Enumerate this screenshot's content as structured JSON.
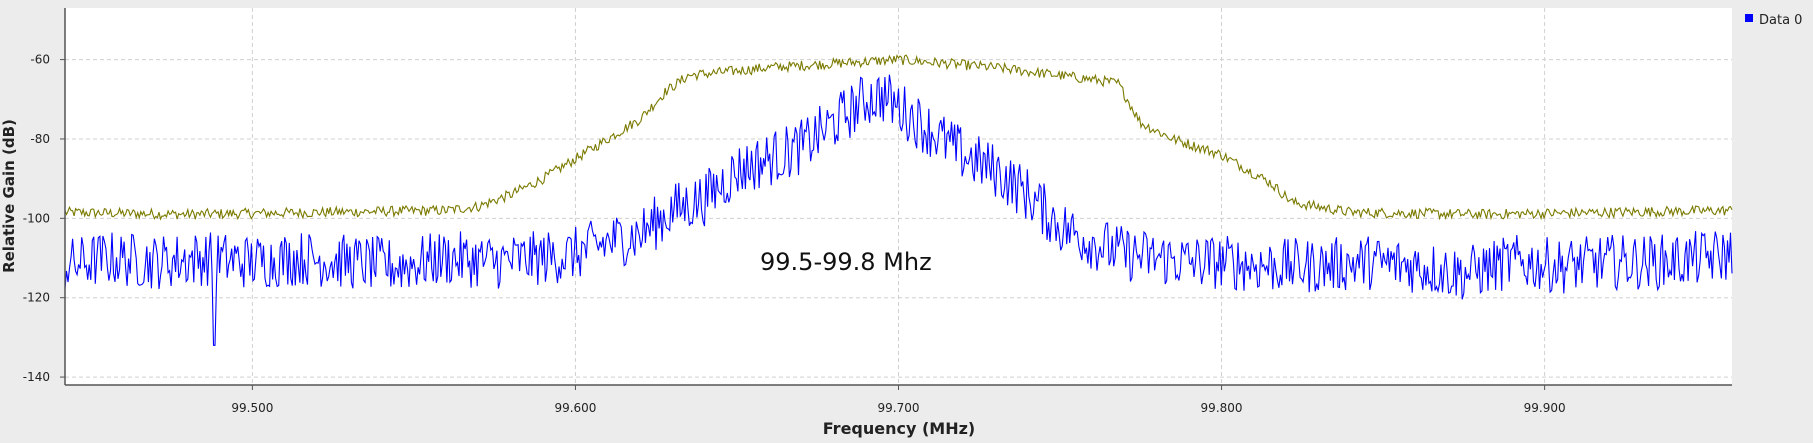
{
  "chart_data": {
    "type": "line",
    "xlabel": "Frequency (MHz)",
    "ylabel": "Relative Gain (dB)",
    "xlim": [
      99.442,
      99.958
    ],
    "ylim": [
      -142,
      -47
    ],
    "x_ticks": [
      99.5,
      99.6,
      99.7,
      99.8,
      99.9
    ],
    "x_tick_labels": [
      "99.500",
      "99.600",
      "99.700",
      "99.800",
      "99.900"
    ],
    "y_ticks": [
      -60,
      -80,
      -100,
      -120,
      -140
    ],
    "y_tick_labels": [
      "-60",
      "-80",
      "-100",
      "-120",
      "-140"
    ],
    "grid": true,
    "legend": {
      "position": "top-right",
      "entries": [
        "Data 0"
      ]
    },
    "annotation": "99.5-99.8 Mhz",
    "series": [
      {
        "name": "Data 0",
        "color": "#0000ff",
        "x": [
          99.442,
          99.455,
          99.47,
          99.485,
          99.5,
          99.515,
          99.53,
          99.545,
          99.56,
          99.575,
          99.59,
          99.6,
          99.61,
          99.62,
          99.63,
          99.64,
          99.65,
          99.66,
          99.67,
          99.68,
          99.69,
          99.695,
          99.7,
          99.71,
          99.72,
          99.73,
          99.74,
          99.75,
          99.76,
          99.77,
          99.78,
          99.79,
          99.8,
          99.815,
          99.83,
          99.845,
          99.86,
          99.875,
          99.89,
          99.905,
          99.92,
          99.935,
          99.95,
          99.958
        ],
        "y": [
          -112,
          -110,
          -111,
          -110,
          -111,
          -110,
          -111,
          -112,
          -110,
          -111,
          -110,
          -109,
          -106,
          -104,
          -98,
          -95,
          -88,
          -85,
          -82,
          -76,
          -70,
          -69,
          -72,
          -78,
          -84,
          -88,
          -94,
          -102,
          -106,
          -109,
          -110,
          -111,
          -111,
          -112,
          -112,
          -111,
          -112,
          -114,
          -111,
          -112,
          -111,
          -111,
          -110,
          -109
        ],
        "noise_amplitude": 7,
        "min_marker": {
          "x": 99.488,
          "y": -132
        }
      },
      {
        "color": "#7a7a00",
        "x": [
          99.442,
          99.48,
          99.52,
          99.56,
          99.57,
          99.58,
          99.59,
          99.6,
          99.61,
          99.62,
          99.628,
          99.635,
          99.66,
          99.7,
          99.73,
          99.76,
          99.768,
          99.775,
          99.785,
          99.8,
          99.815,
          99.822,
          99.84,
          99.88,
          99.92,
          99.958
        ],
        "y": [
          -98.5,
          -99,
          -98.5,
          -98,
          -97,
          -94,
          -90,
          -85,
          -80,
          -75,
          -68,
          -64,
          -62,
          -60,
          -62,
          -65,
          -66,
          -76,
          -80,
          -84,
          -91,
          -96,
          -98.5,
          -99,
          -98.5,
          -98
        ],
        "noise_amplitude": 1.3
      }
    ]
  }
}
